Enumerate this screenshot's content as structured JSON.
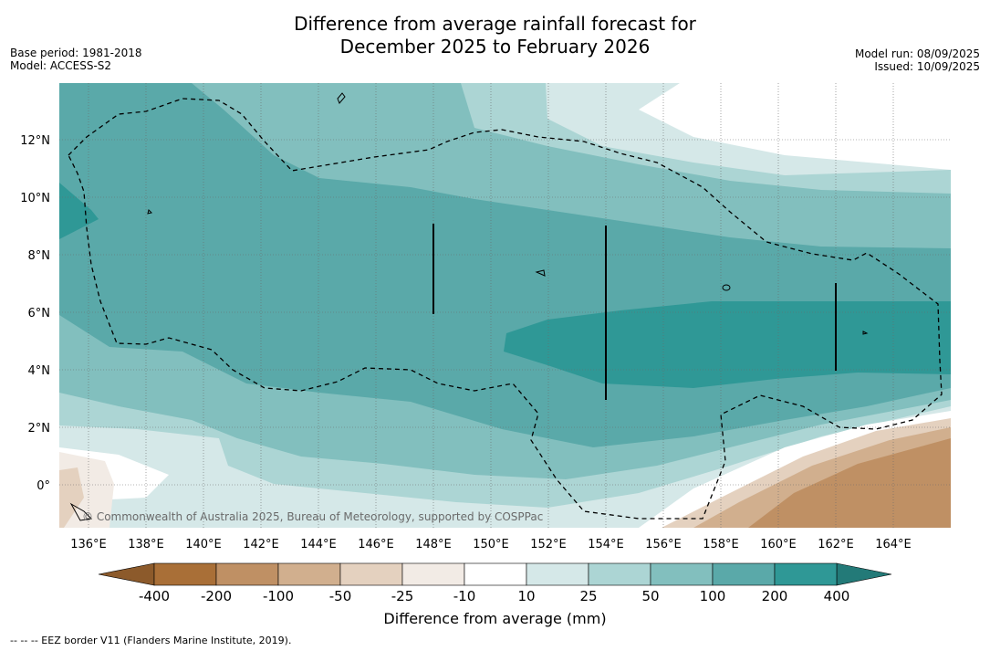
{
  "title_line1": "Difference from average rainfall forecast for",
  "title_line2": "December 2025 to February 2026",
  "base_period": "Base period: 1981-2018",
  "model": "Model: ACCESS-S2",
  "model_run": "Model run: 08/09/2025",
  "issued": "Issued: 10/09/2025",
  "copyright": "© Commonwealth of Australia 2025, Bureau of Meteorology, supported by COSPPac",
  "footnote": "--  --  -- EEZ border V11 (Flanders Marine Institute, 2019).",
  "colorbar": {
    "title": "Difference from average (mm)",
    "tick_labels": [
      "-400",
      "-200",
      "-100",
      "-50",
      "-25",
      "-10",
      "10",
      "25",
      "50",
      "100",
      "200",
      "400"
    ],
    "colors": [
      "#a96f37",
      "#bf9064",
      "#d1af8e",
      "#e4d1bf",
      "#f2ebe5",
      "#ffffff",
      "#d5e8e8",
      "#acd5d4",
      "#82bfbe",
      "#5aa9a9",
      "#2f9896"
    ],
    "under_color": "#8c5a2b",
    "over_color": "#237a78"
  },
  "map": {
    "lon_labels": [
      "136°E",
      "138°E",
      "140°E",
      "142°E",
      "144°E",
      "146°E",
      "148°E",
      "150°E",
      "152°E",
      "154°E",
      "156°E",
      "158°E",
      "160°E",
      "162°E",
      "164°E"
    ],
    "lat_labels": [
      "12°N",
      "10°N",
      "8°N",
      "6°N",
      "4°N",
      "2°N",
      "0°"
    ],
    "lon_range": [
      135,
      166
    ],
    "lat_range": [
      -1.5,
      14
    ]
  }
}
